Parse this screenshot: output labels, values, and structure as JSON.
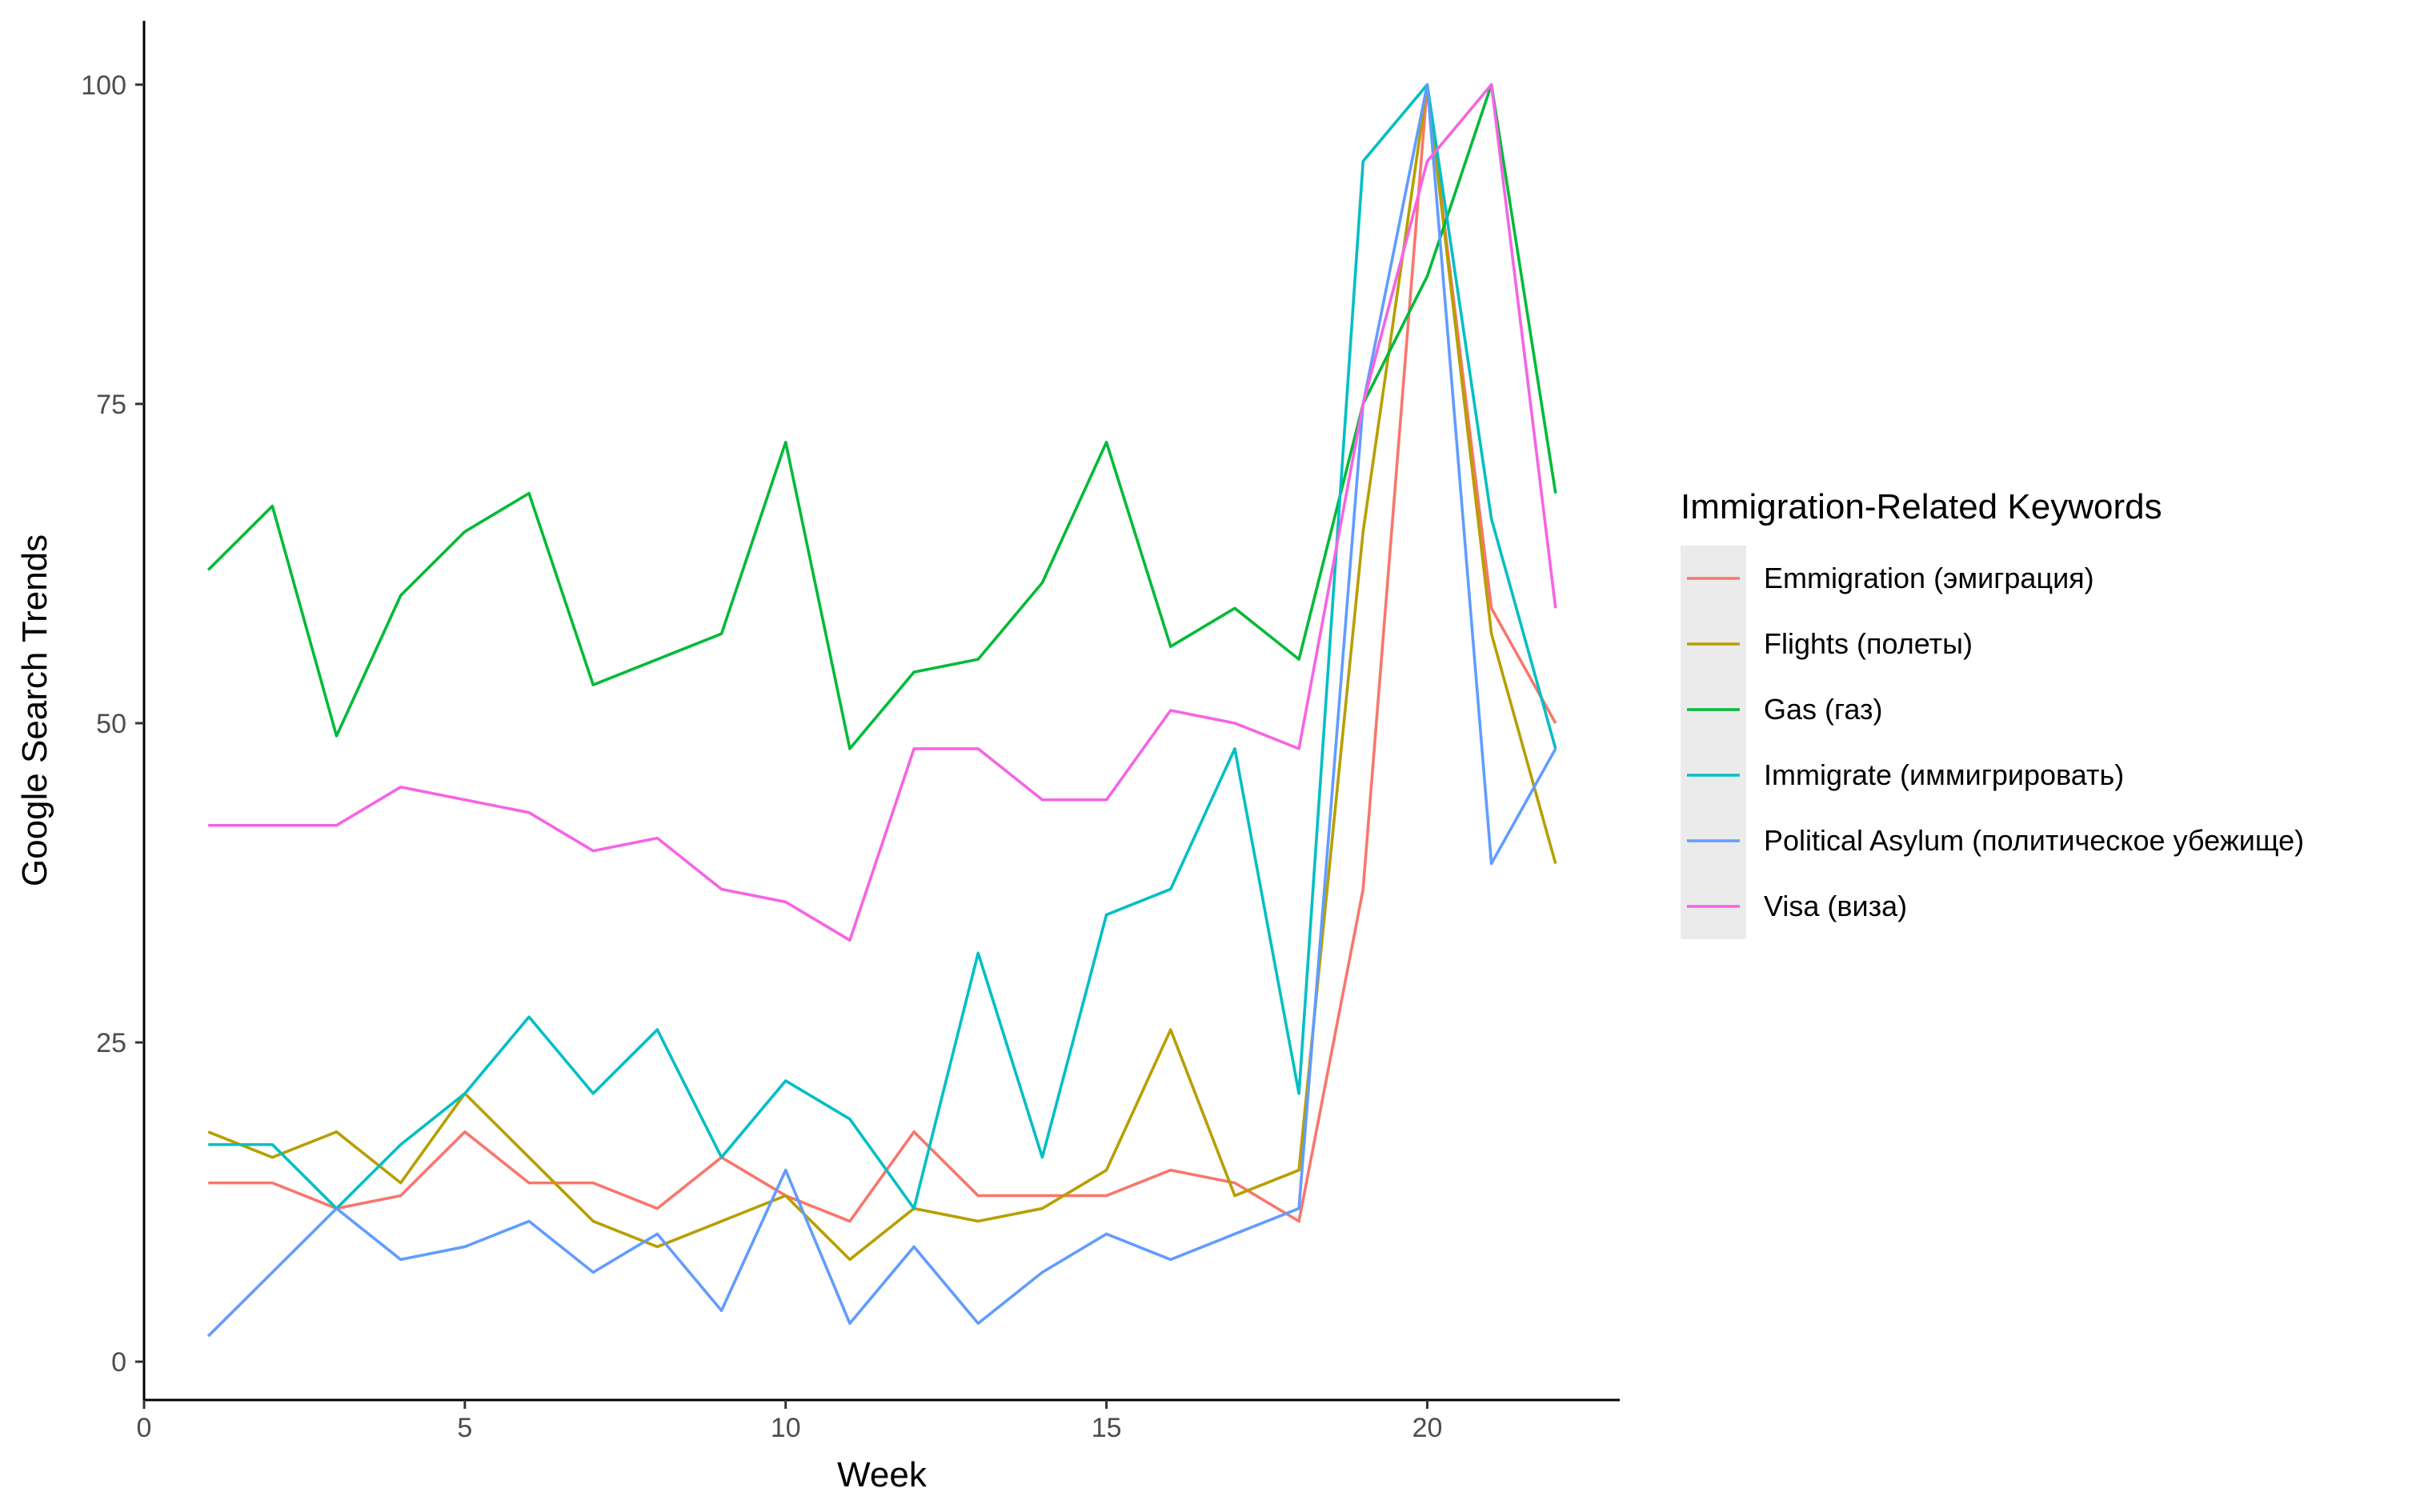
{
  "chart_data": {
    "type": "line",
    "title": "",
    "xlabel": "Week",
    "ylabel": "Google Search Trends",
    "xlim": [
      0,
      23
    ],
    "ylim": [
      -3,
      105
    ],
    "x_ticks": [
      0,
      5,
      10,
      15,
      20
    ],
    "y_ticks": [
      0,
      25,
      50,
      75,
      100
    ],
    "grid": false,
    "legend": {
      "title": "Immigration-Related Keywords",
      "position": "right"
    },
    "x": [
      1,
      2,
      3,
      4,
      5,
      6,
      7,
      8,
      9,
      10,
      11,
      12,
      13,
      14,
      15,
      16,
      17,
      18,
      19,
      20,
      21,
      22
    ],
    "series": [
      {
        "name": "Emmigration (эмиграция)",
        "color": "#F8766D",
        "values": [
          14,
          14,
          12,
          13,
          18,
          14,
          14,
          12,
          16,
          13,
          11,
          18,
          13,
          13,
          13,
          15,
          14,
          11,
          37,
          100,
          59,
          50
        ]
      },
      {
        "name": "Flights (полеты)",
        "color": "#B79F00",
        "values": [
          18,
          16,
          18,
          14,
          21,
          16,
          11,
          9,
          11,
          13,
          8,
          12,
          11,
          12,
          15,
          26,
          13,
          15,
          65,
          100,
          57,
          39
        ]
      },
      {
        "name": "Gas (газ)",
        "color": "#00BA38",
        "values": [
          62,
          67,
          49,
          60,
          65,
          68,
          53,
          55,
          57,
          72,
          48,
          54,
          55,
          61,
          72,
          56,
          59,
          55,
          75,
          85,
          100,
          68
        ]
      },
      {
        "name": "Immigrate (иммигрировать)",
        "color": "#00BFC4",
        "values": [
          17,
          17,
          12,
          17,
          21,
          27,
          21,
          26,
          16,
          22,
          19,
          12,
          32,
          16,
          35,
          37,
          48,
          21,
          94,
          100,
          66,
          48
        ]
      },
      {
        "name": "Political Asylum (политическое убежище)",
        "color": "#619CFF",
        "values": [
          2,
          7,
          12,
          8,
          9,
          11,
          7,
          10,
          4,
          15,
          3,
          9,
          3,
          7,
          10,
          8,
          10,
          12,
          75,
          100,
          39,
          48
        ]
      },
      {
        "name": "Visa (виза)",
        "color": "#F564E3",
        "values": [
          42,
          42,
          42,
          45,
          44,
          43,
          40,
          41,
          37,
          36,
          33,
          48,
          48,
          44,
          44,
          51,
          50,
          48,
          75,
          94,
          100,
          59
        ]
      }
    ]
  }
}
